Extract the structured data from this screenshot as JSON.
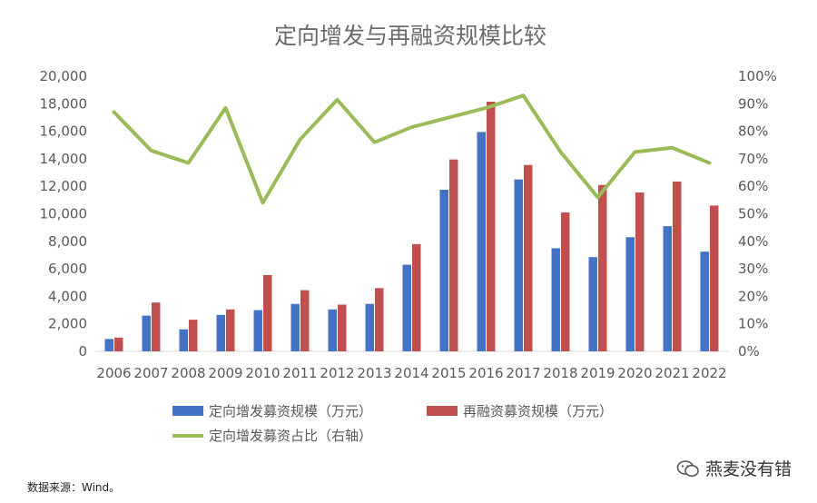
{
  "chart_data": {
    "type": "bar",
    "title": "定向增发与再融资规模比较",
    "categories": [
      "2006",
      "2007",
      "2008",
      "2009",
      "2010",
      "2011",
      "2012",
      "2013",
      "2014",
      "2015",
      "2016",
      "2017",
      "2018",
      "2019",
      "2020",
      "2021",
      "2022"
    ],
    "series": [
      {
        "name": "定向增发募资规模（万元）",
        "type": "bar",
        "axis": "left",
        "color": "#4472c4",
        "values": [
          900,
          2600,
          1600,
          2650,
          3000,
          3450,
          3050,
          3450,
          6300,
          11750,
          15950,
          12500,
          7500,
          6850,
          8300,
          9100,
          7250
        ]
      },
      {
        "name": "再融资募资规模（万元）",
        "type": "bar",
        "axis": "left",
        "color": "#c0504d",
        "values": [
          1000,
          3550,
          2300,
          3050,
          5550,
          4450,
          3400,
          4600,
          7800,
          13950,
          18150,
          13550,
          10100,
          12100,
          11550,
          12350,
          10600
        ]
      },
      {
        "name": "定向增发募资占比（右轴）",
        "type": "line",
        "axis": "right",
        "color": "#9bbb59",
        "values": [
          87,
          73,
          68.5,
          88.5,
          54,
          77,
          91.5,
          76,
          81.5,
          85,
          88.5,
          93,
          72.5,
          56,
          72.5,
          74,
          68.5
        ]
      }
    ],
    "y_left": {
      "min": 0,
      "max": 20000,
      "step": 2000,
      "tick_labels": [
        "0",
        "2,000",
        "4,000",
        "6,000",
        "8,000",
        "10,000",
        "12,000",
        "14,000",
        "16,000",
        "18,000",
        "20,000"
      ]
    },
    "y_right": {
      "min": 0,
      "max": 100,
      "step": 10,
      "tick_labels": [
        "0%",
        "10%",
        "20%",
        "30%",
        "40%",
        "50%",
        "60%",
        "70%",
        "80%",
        "90%",
        "100%"
      ]
    },
    "grid": false,
    "legend_position": "bottom"
  },
  "source_text": "数据来源：Wind。",
  "watermark": {
    "text": "燕麦没有错",
    "icon": "wechat-icon"
  }
}
